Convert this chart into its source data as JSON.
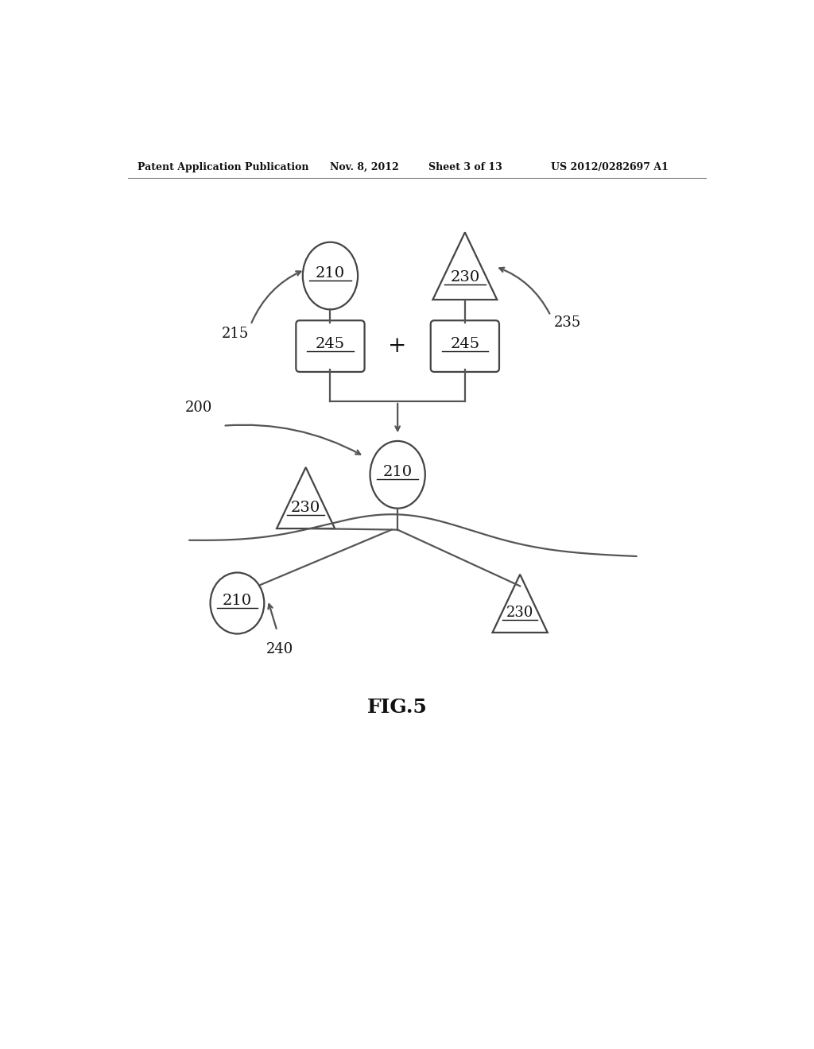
{
  "bg_color": "#ffffff",
  "header_text": "Patent Application Publication",
  "header_date": "Nov. 8, 2012",
  "header_sheet": "Sheet 3 of 13",
  "header_patent": "US 2012/0282697 A1",
  "fig_label": "FIG.5",
  "label_210": "210",
  "label_230": "230",
  "label_245": "245",
  "label_215": "215",
  "label_235": "235",
  "label_200": "200",
  "label_240": "240",
  "line_color": "#555555",
  "shape_edge_color": "#444444",
  "text_color": "#111111",
  "lw": 1.6
}
